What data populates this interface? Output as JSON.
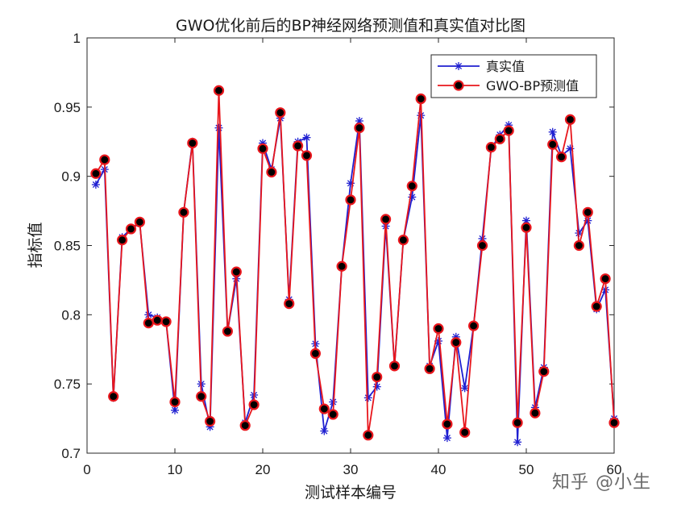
{
  "chart_data": {
    "type": "line",
    "title": "GWO优化前后的BP神经网络预测值和真实值对比图",
    "xlabel": "测试样本编号",
    "ylabel": "指标值",
    "xlim": [
      0,
      60
    ],
    "ylim": [
      0.7,
      1.0
    ],
    "xticks": [
      "0",
      "10",
      "20",
      "30",
      "40",
      "50",
      "60"
    ],
    "yticks": [
      "0.7",
      "0.75",
      "0.8",
      "0.85",
      "0.9",
      "0.95",
      "1"
    ],
    "grid": false,
    "legend_position": "top-right",
    "x": [
      1,
      2,
      3,
      4,
      5,
      6,
      7,
      8,
      9,
      10,
      11,
      12,
      13,
      14,
      15,
      16,
      17,
      18,
      19,
      20,
      21,
      22,
      23,
      24,
      25,
      26,
      27,
      28,
      29,
      30,
      31,
      32,
      33,
      34,
      35,
      36,
      37,
      38,
      39,
      40,
      41,
      42,
      43,
      44,
      45,
      46,
      47,
      48,
      49,
      50,
      51,
      52,
      53,
      54,
      55,
      56,
      57,
      58,
      59,
      60
    ],
    "series": [
      {
        "name": "真实值",
        "color": "#1f1fd1",
        "marker": "asterisk",
        "values": [
          0.894,
          0.905,
          0.74,
          0.856,
          0.862,
          0.866,
          0.8,
          0.798,
          0.795,
          0.731,
          0.874,
          0.925,
          0.75,
          0.719,
          0.935,
          0.788,
          0.826,
          0.722,
          0.742,
          0.924,
          0.905,
          0.942,
          0.811,
          0.925,
          0.928,
          0.779,
          0.716,
          0.737,
          0.835,
          0.895,
          0.94,
          0.74,
          0.748,
          0.864,
          0.763,
          0.854,
          0.885,
          0.944,
          0.763,
          0.781,
          0.711,
          0.784,
          0.747,
          0.792,
          0.855,
          0.92,
          0.93,
          0.937,
          0.708,
          0.868,
          0.733,
          0.762,
          0.932,
          0.915,
          0.92,
          0.859,
          0.868,
          0.804,
          0.818,
          0.725
        ]
      },
      {
        "name": "GWO-BP预测值",
        "color": "#e8161c",
        "marker": "circle",
        "values": [
          0.902,
          0.912,
          0.741,
          0.854,
          0.862,
          0.867,
          0.794,
          0.796,
          0.795,
          0.737,
          0.874,
          0.924,
          0.741,
          0.723,
          0.962,
          0.788,
          0.831,
          0.72,
          0.735,
          0.92,
          0.903,
          0.946,
          0.808,
          0.922,
          0.915,
          0.772,
          0.732,
          0.728,
          0.835,
          0.883,
          0.935,
          0.713,
          0.755,
          0.869,
          0.763,
          0.854,
          0.893,
          0.956,
          0.761,
          0.79,
          0.721,
          0.78,
          0.715,
          0.792,
          0.85,
          0.921,
          0.927,
          0.933,
          0.722,
          0.863,
          0.729,
          0.759,
          0.923,
          0.914,
          0.941,
          0.85,
          0.874,
          0.806,
          0.826,
          0.722
        ]
      }
    ]
  },
  "watermark": "知乎 @小生"
}
